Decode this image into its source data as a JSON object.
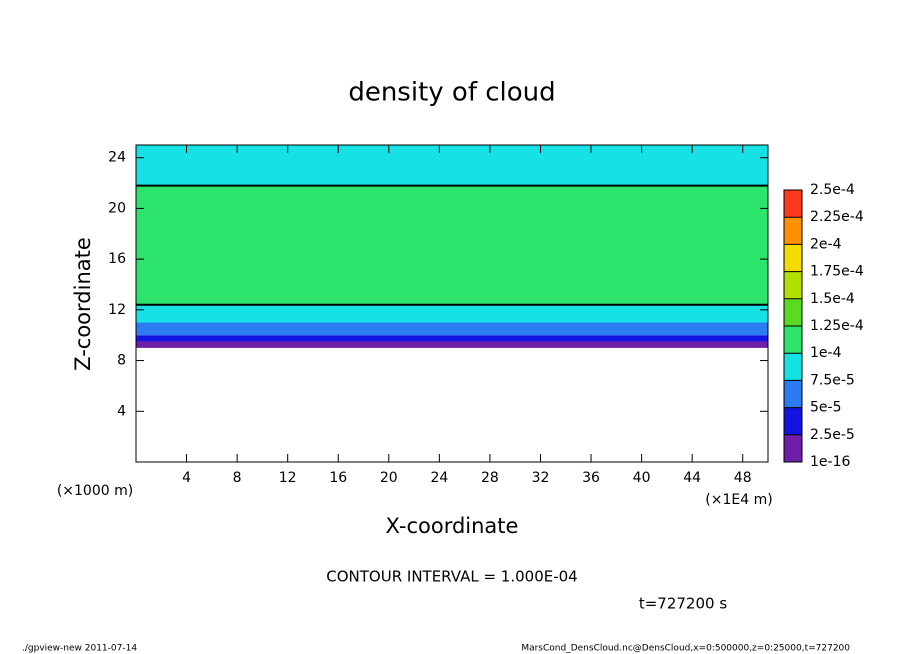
{
  "chart_data": {
    "type": "heatmap",
    "title": "density of cloud",
    "x_label": "X-coordinate",
    "y_label": "Z-coordinate",
    "x_unit": "(×1E4 m)",
    "y_unit": "(×1000 m)",
    "xlim": [
      0,
      50
    ],
    "xticks": [
      4,
      8,
      12,
      16,
      20,
      24,
      28,
      32,
      36,
      40,
      44,
      48
    ],
    "ylim": [
      0,
      25
    ],
    "yticks": [
      4,
      8,
      12,
      16,
      20,
      24
    ],
    "ybins": [
      9,
      9.5,
      10,
      11,
      12.4,
      21.8,
      25
    ],
    "values": [
      1e-05,
      4e-05,
      6e-05,
      9e-05,
      0.00011,
      9e-05
    ],
    "contour_level": 0.0001,
    "contour_text": "CONTOUR INTERVAL = 1.000E-04",
    "time_text": "t=727200 s",
    "colorbar": {
      "lim": [
        1e-16,
        0.00025
      ],
      "ticks": [
        {
          "value": 1e-16,
          "label": "1e-16"
        },
        {
          "value": 2.5e-05,
          "label": "2.5e-5"
        },
        {
          "value": 5e-05,
          "label": "5e-5"
        },
        {
          "value": 7.5e-05,
          "label": "7.5e-5"
        },
        {
          "value": 0.0001,
          "label": "1e-4"
        },
        {
          "value": 0.000125,
          "label": "1.25e-4"
        },
        {
          "value": 0.00015,
          "label": "1.5e-4"
        },
        {
          "value": 0.000175,
          "label": "1.75e-4"
        },
        {
          "value": 0.0002,
          "label": "2e-4"
        },
        {
          "value": 0.000225,
          "label": "2.25e-4"
        },
        {
          "value": 0.00025,
          "label": "2.5e-4"
        }
      ],
      "colors": [
        "#6e1ea8",
        "#1414e0",
        "#2a7cf0",
        "#16e2e6",
        "#2ce46c",
        "#5ada22",
        "#b0e000",
        "#f4dc00",
        "#ff9000",
        "#ff3a1e",
        "#f27a7a"
      ]
    },
    "footer_left": "./gpview-new  2011-07-14",
    "footer_right": "MarsCond_DensCloud.nc@DensCloud,x=0:500000,z=0:25000,t=727200"
  }
}
